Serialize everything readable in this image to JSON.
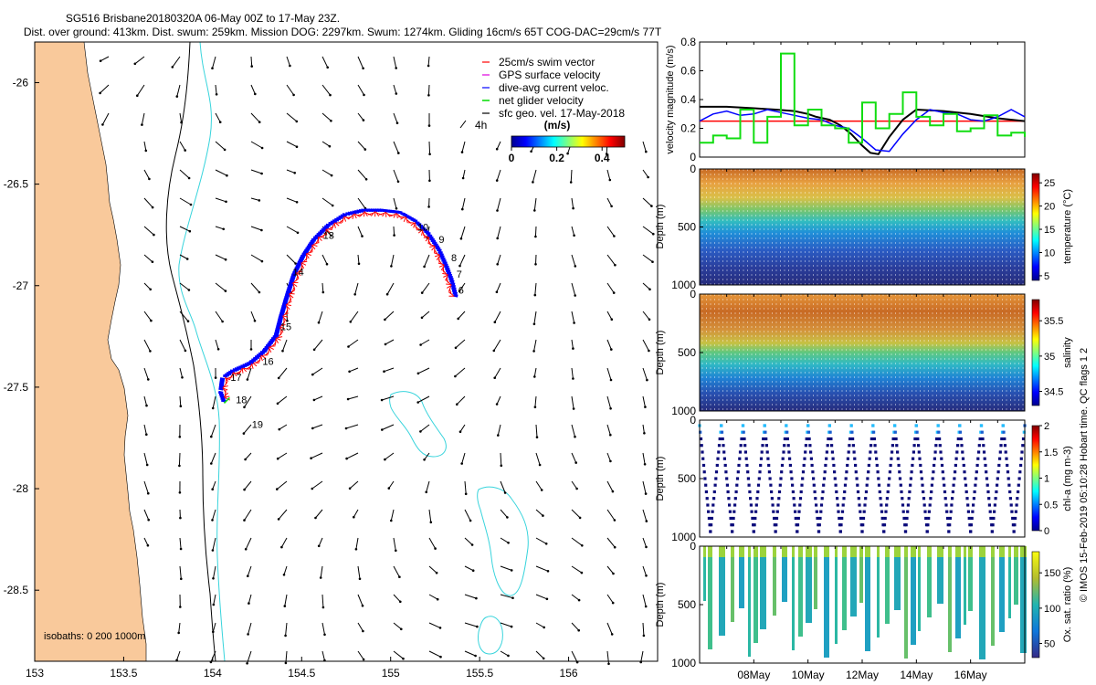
{
  "title_line1": "SG516 Brisbane20180320A 06-May 00Z to 17-May 23Z.",
  "title_line2": "Dist. over ground: 413km. Dist. swum: 259km. Mission DOG: 2297km. Swum: 1274km. Gliding 16cm/s 65T COG-DAC=29cm/s 77T",
  "credit": "© IMOS 15-Feb-2019 05:10:28 Hobart time. QC flags 1  2",
  "colors": {
    "land": "#f9c99b",
    "isobath_200": "#000000",
    "isobath_1000": "#38d4dc",
    "swim": "#ff0000",
    "gps": "#e000e0",
    "dive": "#0000ff",
    "net": "#11dd11",
    "sfc": "#000000"
  },
  "chart_data": [
    {
      "id": "map",
      "type": "scatter",
      "xlabel": "longitude",
      "ylabel": "latitude",
      "xlim": [
        153,
        156.5
      ],
      "ylim": [
        -28.85,
        -25.8
      ],
      "x_ticks": [
        153,
        153.5,
        154,
        154.5,
        155,
        155.5,
        156
      ],
      "x_tick_labels": [
        "153",
        "153.5",
        "154",
        "154.5",
        "155",
        "155.5",
        "156"
      ],
      "y_ticks": [
        -26,
        -26.5,
        -27,
        -27.5,
        -28,
        -28.5
      ],
      "y_tick_labels": [
        "-26",
        "-26.5",
        "-27",
        "-27.5",
        "-28",
        "-28.5"
      ],
      "legend": [
        {
          "key": "swim",
          "label": "25cm/s swim vector"
        },
        {
          "key": "gps",
          "label": "GPS surface velocity"
        },
        {
          "key": "dive",
          "label": "dive-avg current veloc."
        },
        {
          "key": "net",
          "label": "net glider velocity"
        },
        {
          "key": "sfc",
          "label": "sfc geo. vel. 17-May-2018"
        }
      ],
      "legend_4h": "4h",
      "colorbar_title": "(m/s)",
      "colorbar_range": [
        0,
        0.5
      ],
      "colorbar_ticks": [
        0,
        0.2,
        0.4
      ],
      "colorbar_tick_labels": [
        "0",
        "0.2",
        "0.4"
      ],
      "isobath_label": "isobaths: 0   200  1000m",
      "track": [
        [
          155.35,
          -27.05
        ],
        [
          155.33,
          -26.98
        ],
        [
          155.3,
          -26.91
        ],
        [
          155.26,
          -26.83
        ],
        [
          155.2,
          -26.75
        ],
        [
          155.13,
          -26.69
        ],
        [
          155.05,
          -26.65
        ],
        [
          154.95,
          -26.64
        ],
        [
          154.85,
          -26.64
        ],
        [
          154.75,
          -26.66
        ],
        [
          154.66,
          -26.71
        ],
        [
          154.58,
          -26.78
        ],
        [
          154.52,
          -26.86
        ],
        [
          154.47,
          -26.95
        ],
        [
          154.43,
          -27.06
        ],
        [
          154.4,
          -27.15
        ],
        [
          154.37,
          -27.25
        ],
        [
          154.3,
          -27.33
        ],
        [
          154.22,
          -27.39
        ],
        [
          154.12,
          -27.43
        ],
        [
          154.07,
          -27.46
        ],
        [
          154.06,
          -27.52
        ],
        [
          154.08,
          -27.57
        ]
      ],
      "day_labels": [
        {
          "text": "6",
          "lon": 155.38,
          "lat": -27.04
        },
        {
          "text": "7",
          "lon": 155.37,
          "lat": -26.96
        },
        {
          "text": "8",
          "lon": 155.34,
          "lat": -26.88
        },
        {
          "text": "9",
          "lon": 155.27,
          "lat": -26.79
        },
        {
          "text": "10",
          "lon": 155.15,
          "lat": -26.73
        },
        {
          "text": "13",
          "lon": 154.62,
          "lat": -26.77
        },
        {
          "text": "14",
          "lon": 154.45,
          "lat": -26.95
        },
        {
          "text": "15",
          "lon": 154.38,
          "lat": -27.22
        },
        {
          "text": "16",
          "lon": 154.28,
          "lat": -27.39
        },
        {
          "text": "17",
          "lon": 154.1,
          "lat": -27.47
        },
        {
          "text": "18",
          "lon": 154.13,
          "lat": -27.58
        },
        {
          "text": "19",
          "lon": 154.22,
          "lat": -27.7
        }
      ]
    },
    {
      "id": "velocity",
      "type": "line",
      "xlabel": "",
      "ylabel": "velocity magnitude (m/s)",
      "xlim": [
        6,
        18
      ],
      "ylim": [
        0,
        0.8
      ],
      "y_ticks": [
        0,
        0.2,
        0.4,
        0.6,
        0.8
      ],
      "y_tick_labels": [
        "0",
        "0.2",
        "0.4",
        "0.6",
        "0.8"
      ],
      "series": [
        {
          "name": "25cm/s swim vector",
          "color_key": "swim",
          "x": [
            6,
            18
          ],
          "y": [
            0.25,
            0.25
          ]
        },
        {
          "name": "sfc geo. vel.",
          "color_key": "sfc",
          "x": [
            6,
            7,
            8,
            8.8,
            9.5,
            10,
            10.3,
            10.8,
            11.2,
            11.6,
            12,
            12.3,
            12.6,
            13,
            13.5,
            14,
            15,
            16,
            17,
            18
          ],
          "y": [
            0.35,
            0.35,
            0.34,
            0.33,
            0.32,
            0.3,
            0.28,
            0.26,
            0.22,
            0.16,
            0.08,
            0.03,
            0.02,
            0.14,
            0.26,
            0.33,
            0.32,
            0.3,
            0.27,
            0.25
          ]
        },
        {
          "name": "dive-avg current veloc.",
          "color_key": "dive",
          "x": [
            6,
            6.5,
            7,
            7.5,
            8,
            8.5,
            9,
            9.5,
            10,
            10.5,
            11,
            11.5,
            12,
            12.5,
            13,
            13.5,
            14,
            14.5,
            15,
            15.5,
            16,
            16.5,
            17,
            17.5,
            18
          ],
          "y": [
            0.25,
            0.3,
            0.32,
            0.29,
            0.3,
            0.33,
            0.31,
            0.29,
            0.27,
            0.26,
            0.22,
            0.2,
            0.13,
            0.05,
            0.04,
            0.16,
            0.26,
            0.33,
            0.31,
            0.3,
            0.26,
            0.25,
            0.28,
            0.33,
            0.28
          ]
        },
        {
          "name": "net glider velocity",
          "color_key": "net",
          "x": [
            6,
            6.5,
            7,
            7.5,
            8,
            8.5,
            9,
            9.5,
            10,
            10.5,
            11,
            11.5,
            12,
            12.5,
            13,
            13.5,
            14,
            14.5,
            15,
            15.5,
            16,
            16.5,
            17,
            17.5,
            18
          ],
          "y": [
            0.1,
            0.15,
            0.13,
            0.33,
            0.1,
            0.28,
            0.72,
            0.22,
            0.33,
            0.22,
            0.2,
            0.1,
            0.38,
            0.2,
            0.3,
            0.45,
            0.28,
            0.22,
            0.3,
            0.18,
            0.2,
            0.29,
            0.15,
            0.17,
            0.14
          ]
        }
      ]
    },
    {
      "id": "temperature",
      "type": "heatmap",
      "xlabel": "",
      "ylabel": "Depth (m)",
      "colorbar_label": "temperature (°C)",
      "xlim": [
        6,
        18
      ],
      "ylim": [
        1000,
        0
      ],
      "y_ticks": [
        0,
        500,
        1000
      ],
      "y_tick_labels": [
        "0",
        "500",
        "1000"
      ],
      "colorbar_range": [
        4,
        27
      ],
      "colorbar_ticks": [
        5,
        10,
        15,
        20,
        25
      ],
      "colorbar_tick_labels": [
        "5",
        "10",
        "15",
        "20",
        "25"
      ],
      "profile_depth": [
        0,
        100,
        200,
        300,
        400,
        500,
        600,
        700,
        800,
        900,
        1000
      ],
      "profile_value": [
        26,
        24,
        22,
        20,
        17,
        14,
        11,
        9,
        7,
        5.5,
        4.5
      ]
    },
    {
      "id": "salinity",
      "type": "heatmap",
      "xlabel": "",
      "ylabel": "Depth (m)",
      "colorbar_label": "salinity",
      "xlim": [
        6,
        18
      ],
      "ylim": [
        1000,
        0
      ],
      "y_ticks": [
        0,
        500,
        1000
      ],
      "y_tick_labels": [
        "0",
        "500",
        "1000"
      ],
      "colorbar_range": [
        34.3,
        35.8
      ],
      "colorbar_ticks": [
        34.5,
        35,
        35.5
      ],
      "colorbar_tick_labels": [
        "34.5",
        "35",
        "35.5"
      ],
      "profile_depth": [
        0,
        100,
        200,
        300,
        400,
        500,
        600,
        700,
        800,
        900,
        1000
      ],
      "profile_value": [
        35.5,
        35.6,
        35.6,
        35.5,
        35.3,
        35.1,
        34.8,
        34.6,
        34.5,
        34.45,
        34.45
      ]
    },
    {
      "id": "chla",
      "type": "heatmap",
      "xlabel": "",
      "ylabel": "Depth (m)",
      "colorbar_label": "chl-a (mg m-3)",
      "xlim": [
        6,
        18
      ],
      "ylim": [
        1000,
        0
      ],
      "y_ticks": [
        0,
        500,
        1000
      ],
      "y_tick_labels": [
        "0",
        "500",
        "1000"
      ],
      "colorbar_range": [
        0,
        2
      ],
      "colorbar_ticks": [
        0,
        0.5,
        1,
        1.5,
        2
      ],
      "colorbar_tick_labels": [
        "0",
        "0.5",
        "1",
        "1.5",
        "2"
      ],
      "profile_depth": [
        0,
        50,
        100,
        200,
        300,
        1000
      ],
      "profile_value": [
        0.5,
        0.9,
        0.2,
        0.05,
        0.02,
        0.0
      ]
    },
    {
      "id": "oxygen",
      "type": "heatmap",
      "xlabel": "",
      "ylabel": "Depth (m)",
      "colorbar_label": "Ox. sat. ratio (%)",
      "xlim": [
        6,
        18
      ],
      "ylim": [
        1000,
        0
      ],
      "y_ticks": [
        0,
        500,
        1000
      ],
      "y_tick_labels": [
        "0",
        "500",
        "1000"
      ],
      "colorbar_range": [
        30,
        180
      ],
      "colorbar_ticks": [
        50,
        100,
        150
      ],
      "colorbar_tick_labels": [
        "50",
        "100",
        "150"
      ],
      "profile_depth": [
        0,
        100,
        300,
        600,
        1000
      ],
      "profile_value": [
        120,
        105,
        95,
        92,
        95
      ],
      "x_ticks": [
        8,
        10,
        12,
        14,
        16
      ],
      "x_tick_labels": [
        "08May",
        "10May",
        "12May",
        "14May",
        "16May"
      ]
    }
  ]
}
